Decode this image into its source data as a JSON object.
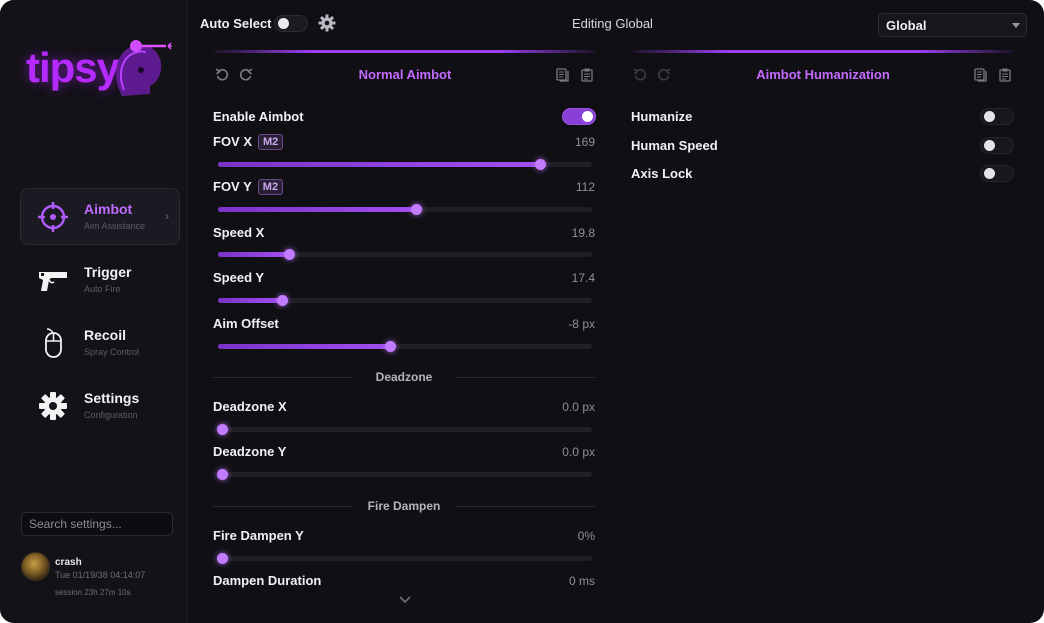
{
  "brand": {
    "logo_text": "tipsy"
  },
  "nav": [
    {
      "label": "Aimbot",
      "sub": "Aim Assistance",
      "icon": "crosshair-icon",
      "active": true
    },
    {
      "label": "Trigger",
      "sub": "Auto Fire",
      "icon": "pistol-icon",
      "active": false
    },
    {
      "label": "Recoil",
      "sub": "Spray Control",
      "icon": "mouse-icon",
      "active": false
    },
    {
      "label": "Settings",
      "sub": "Configuration",
      "icon": "gear-icon",
      "active": false
    }
  ],
  "search": {
    "placeholder": "Search settings..."
  },
  "user": {
    "name": "crash",
    "timestamp": "Tue 01/19/38 04:14:07",
    "session": "session 23h 27m 10s"
  },
  "topbar": {
    "auto_select_label": "Auto Select",
    "auto_select_on": false,
    "editing_label": "Editing Global",
    "profile_select": "Global"
  },
  "left_panel": {
    "title": "Normal Aimbot",
    "enable": {
      "label": "Enable Aimbot",
      "on": true
    },
    "sliders": [
      {
        "label": "FOV X",
        "badge": "M2",
        "value": "169",
        "fraction": 0.86
      },
      {
        "label": "FOV Y",
        "badge": "M2",
        "value": "112",
        "fraction": 0.53
      },
      {
        "label": "Speed X",
        "badge": "",
        "value": "19.8",
        "fraction": 0.19
      },
      {
        "label": "Speed Y",
        "badge": "",
        "value": "17.4",
        "fraction": 0.17
      },
      {
        "label": "Aim Offset",
        "badge": "",
        "value": "-8 px",
        "fraction": 0.46
      }
    ],
    "deadzone_title": "Deadzone",
    "deadzone": [
      {
        "label": "Deadzone X",
        "value": "0.0 px",
        "fraction": 0.0
      },
      {
        "label": "Deadzone Y",
        "value": "0.0 px",
        "fraction": 0.0
      }
    ],
    "fire_dampen_title": "Fire Dampen",
    "fire_dampen": {
      "label": "Fire Dampen Y",
      "value": "0%",
      "fraction": 0.0
    },
    "dampen_duration": {
      "label": "Dampen Duration",
      "value": "0 ms"
    }
  },
  "right_panel": {
    "title": "Aimbot Humanization",
    "toggles": [
      {
        "label": "Humanize",
        "on": false
      },
      {
        "label": "Human Speed",
        "on": false
      },
      {
        "label": "Axis Lock",
        "on": false
      }
    ]
  },
  "colors": {
    "accent": "#a24ff0",
    "accent_text": "#c46bff",
    "background": "#101014"
  }
}
